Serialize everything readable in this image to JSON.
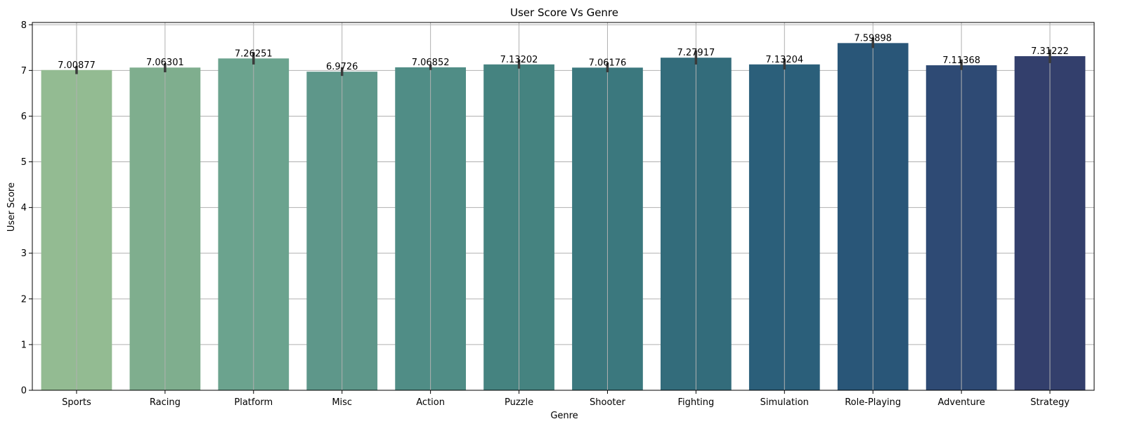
{
  "chart_data": {
    "type": "bar",
    "title": "User Score Vs Genre",
    "xlabel": "Genre",
    "ylabel": "User Score",
    "categories": [
      "Sports",
      "Racing",
      "Platform",
      "Misc",
      "Action",
      "Puzzle",
      "Shooter",
      "Fighting",
      "Simulation",
      "Role-Playing",
      "Adventure",
      "Strategy"
    ],
    "values": [
      7.00877,
      7.06301,
      7.26251,
      6.9726,
      7.06852,
      7.13202,
      7.06176,
      7.27917,
      7.13204,
      7.59898,
      7.11368,
      7.31222
    ],
    "value_labels": [
      "7.00877",
      "7.06301",
      "7.26251",
      "6.9726",
      "7.06852",
      "7.13202",
      "7.06176",
      "7.27917",
      "7.13204",
      "7.59898",
      "7.11368",
      "7.31222"
    ],
    "error_low": [
      6.92,
      6.96,
      7.13,
      6.88,
      7.01,
      7.04,
      6.96,
      7.13,
      7.02,
      7.49,
      7.01,
      7.16
    ],
    "error_high": [
      7.1,
      7.16,
      7.4,
      7.07,
      7.13,
      7.24,
      7.17,
      7.44,
      7.26,
      7.72,
      7.24,
      7.46
    ],
    "ylim": [
      0,
      8.05
    ],
    "yticks": [
      0,
      1,
      2,
      3,
      4,
      5,
      6,
      7,
      8
    ],
    "grid": true,
    "colors": [
      "#93bb92",
      "#7fae8e",
      "#6ba38e",
      "#5e978a",
      "#508d86",
      "#458380",
      "#3b787e",
      "#336c7b",
      "#2b5f7a",
      "#295678",
      "#2e4a74",
      "#333f6c"
    ],
    "error_color": "#3a3a3a"
  }
}
